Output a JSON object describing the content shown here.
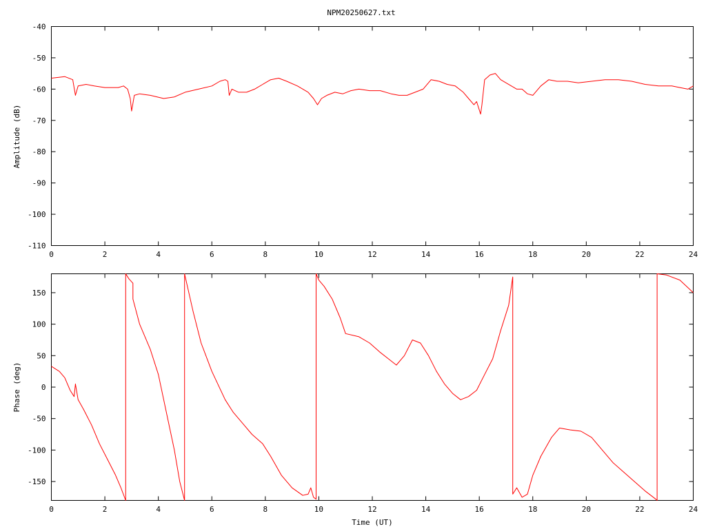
{
  "title": "NPM20250627.txt",
  "chart_data": [
    {
      "type": "line",
      "ylabel": "Amplitude (dB)",
      "xlabel": "",
      "xlim": [
        0,
        24
      ],
      "ylim": [
        -110,
        -40
      ],
      "xticks": [
        "0",
        "2",
        "4",
        "6",
        "8",
        "10",
        "12",
        "14",
        "16",
        "18",
        "20",
        "22",
        "24"
      ],
      "yticks": [
        "-40",
        "-50",
        "-60",
        "-70",
        "-80",
        "-90",
        "-100",
        "-110"
      ],
      "grid": false,
      "color": "#ff0000",
      "x": [
        0,
        0.5,
        0.8,
        0.9,
        1.0,
        1.3,
        1.6,
        2.0,
        2.5,
        2.7,
        2.85,
        2.95,
        3.0,
        3.1,
        3.3,
        3.7,
        4.2,
        4.6,
        5.0,
        5.5,
        6.0,
        6.3,
        6.5,
        6.6,
        6.65,
        6.75,
        7.0,
        7.3,
        7.6,
        7.9,
        8.2,
        8.5,
        8.8,
        9.2,
        9.6,
        9.8,
        9.95,
        10.1,
        10.3,
        10.6,
        10.9,
        11.2,
        11.5,
        11.9,
        12.3,
        12.7,
        13.0,
        13.3,
        13.6,
        13.9,
        14.2,
        14.5,
        14.8,
        15.1,
        15.4,
        15.6,
        15.8,
        15.9,
        16.05,
        16.1,
        16.2,
        16.4,
        16.6,
        16.8,
        17.0,
        17.2,
        17.4,
        17.6,
        17.8,
        18.0,
        18.3,
        18.6,
        18.9,
        19.3,
        19.7,
        20.2,
        20.7,
        21.2,
        21.7,
        22.2,
        22.7,
        23.2,
        23.5,
        23.8,
        24
      ],
      "y": [
        -56.5,
        -56,
        -57,
        -62,
        -59,
        -58.5,
        -59,
        -59.5,
        -59.5,
        -59,
        -60,
        -63,
        -67,
        -62,
        -61.5,
        -62,
        -63,
        -62.5,
        -61,
        -60,
        -59,
        -57.5,
        -57,
        -57.5,
        -62,
        -60,
        -61,
        -61,
        -60,
        -58.5,
        -57,
        -56.5,
        -57.5,
        -59,
        -61,
        -63,
        -65,
        -63,
        -62,
        -61,
        -61.5,
        -60.5,
        -60,
        -60.5,
        -60.5,
        -61.5,
        -62,
        -62,
        -61,
        -60,
        -57,
        -57.5,
        -58.5,
        -59,
        -61,
        -63,
        -65,
        -64,
        -68,
        -65,
        -57,
        -55.5,
        -55,
        -57,
        -58,
        -59,
        -60,
        -60,
        -61.5,
        -62,
        -59,
        -57,
        -57.5,
        -57.5,
        -58,
        -57.5,
        -57,
        -57,
        -57.5,
        -58.5,
        -59,
        -59,
        -59.5,
        -60,
        -59
      ]
    },
    {
      "type": "line",
      "ylabel": "Phase (deg)",
      "xlabel": "Time (UT)",
      "xlim": [
        0,
        24
      ],
      "ylim": [
        -180,
        180
      ],
      "xticks": [
        "0",
        "2",
        "4",
        "6",
        "8",
        "10",
        "12",
        "14",
        "16",
        "18",
        "20",
        "22",
        "24"
      ],
      "yticks": [
        "150",
        "100",
        "50",
        "0",
        "-50",
        "-100",
        "-150"
      ],
      "grid": false,
      "color": "#ff0000",
      "x": [
        0,
        0.3,
        0.5,
        0.7,
        0.85,
        0.9,
        1.0,
        1.2,
        1.5,
        1.8,
        2.1,
        2.4,
        2.6,
        2.78,
        2.78,
        2.9,
        3.05,
        3.05,
        3.3,
        3.7,
        4.0,
        4.3,
        4.6,
        4.8,
        4.98,
        4.98,
        5.3,
        5.6,
        6.0,
        6.5,
        6.8,
        7.2,
        7.5,
        7.9,
        8.2,
        8.6,
        9.0,
        9.4,
        9.6,
        9.7,
        9.8,
        9.9,
        9.9,
        10.0,
        10.2,
        10.5,
        10.8,
        11.0,
        11.5,
        11.9,
        12.3,
        12.6,
        12.9,
        13.2,
        13.5,
        13.8,
        14.1,
        14.4,
        14.7,
        15.0,
        15.3,
        15.6,
        15.9,
        16.2,
        16.5,
        16.8,
        17.1,
        17.25,
        17.25,
        17.4,
        17.6,
        17.8,
        18.0,
        18.3,
        18.7,
        19.0,
        19.4,
        19.8,
        20.2,
        20.6,
        21.0,
        21.4,
        21.8,
        22.2,
        22.6,
        22.65,
        22.65,
        23.0,
        23.5,
        24
      ],
      "y": [
        33,
        25,
        15,
        -5,
        -15,
        5,
        -20,
        -35,
        -60,
        -90,
        -115,
        -140,
        -160,
        -180,
        180,
        172,
        165,
        140,
        100,
        60,
        20,
        -40,
        -100,
        -150,
        -180,
        180,
        120,
        70,
        25,
        -20,
        -40,
        -60,
        -75,
        -90,
        -110,
        -140,
        -160,
        -172,
        -170,
        -160,
        -175,
        -178,
        180,
        170,
        160,
        140,
        110,
        85,
        80,
        70,
        55,
        45,
        35,
        50,
        75,
        70,
        50,
        25,
        5,
        -10,
        -20,
        -15,
        -5,
        20,
        45,
        90,
        130,
        175,
        -170,
        -160,
        -175,
        -170,
        -140,
        -110,
        -80,
        -65,
        -68,
        -70,
        -80,
        -100,
        -120,
        -135,
        -150,
        -165,
        -178,
        -180,
        180,
        178,
        170,
        150
      ]
    }
  ]
}
